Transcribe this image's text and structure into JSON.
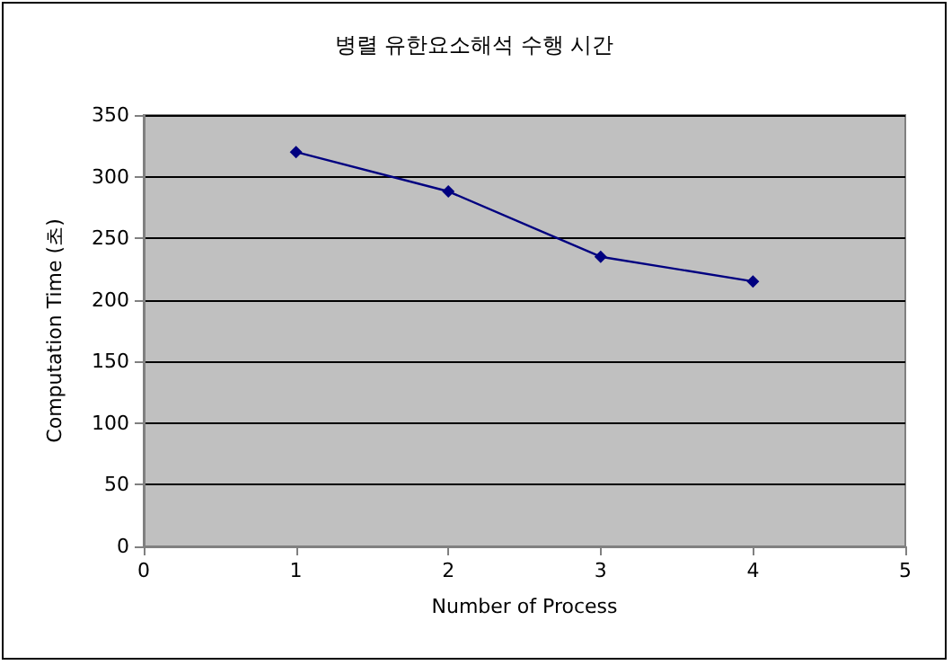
{
  "chart_data": {
    "type": "line",
    "title": "병렬 유한요소해석 수행 시간",
    "xlabel": "Number of Process",
    "ylabel": "Computation Time (초)",
    "x": [
      1,
      2,
      3,
      4
    ],
    "series": [
      {
        "color": "#000080",
        "values": [
          320,
          288,
          235,
          215
        ]
      }
    ],
    "xlim": [
      0,
      5
    ],
    "xticks": [
      0,
      1,
      2,
      3,
      4,
      5
    ],
    "ylim": [
      0,
      350
    ],
    "yticks": [
      0,
      50,
      100,
      150,
      200,
      250,
      300,
      350
    ],
    "grid": "y",
    "marker": "diamond",
    "line_style": "solid"
  }
}
